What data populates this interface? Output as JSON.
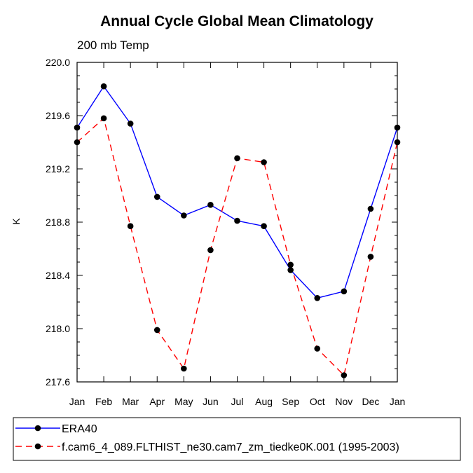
{
  "chart_data": {
    "type": "line",
    "title": "Annual Cycle Global Mean Climatology",
    "subtitle": "200 mb Temp",
    "xlabel": "",
    "ylabel": "K",
    "categories": [
      "Jan",
      "Feb",
      "Mar",
      "Apr",
      "May",
      "Jun",
      "Jul",
      "Aug",
      "Sep",
      "Oct",
      "Nov",
      "Dec",
      "Jan"
    ],
    "ylim": [
      217.6,
      220.0
    ],
    "yticks": [
      "220.0",
      "219.6",
      "219.2",
      "218.8",
      "218.4",
      "218.0",
      "217.6"
    ],
    "series": [
      {
        "name": "ERA40",
        "color": "#0000ff",
        "style": "solid",
        "values": [
          219.51,
          219.82,
          219.54,
          218.99,
          218.85,
          218.93,
          218.81,
          218.77,
          218.44,
          218.23,
          218.28,
          218.9,
          219.51
        ]
      },
      {
        "name": "f.cam6_4_089.FLTHIST_ne30.cam7_zm_tiedke0K.001 (1995-2003)",
        "color": "#ff0000",
        "style": "dashed",
        "values": [
          219.4,
          219.58,
          218.77,
          217.99,
          217.7,
          218.59,
          219.28,
          219.25,
          218.48,
          217.85,
          217.65,
          218.54,
          219.4
        ]
      }
    ],
    "grid": false,
    "legend": "bottom"
  }
}
